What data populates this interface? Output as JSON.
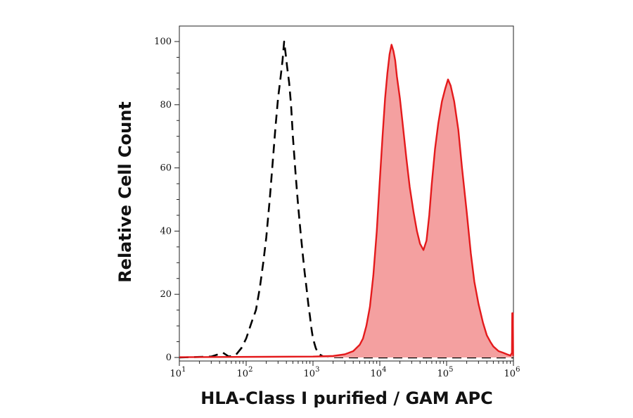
{
  "chart_data": {
    "type": "area",
    "xlabel": "HLA-Class I purified / GAM APC",
    "ylabel": "Relative Cell Count",
    "x_scale": "log",
    "xlim": [
      10,
      1000000
    ],
    "ylim": [
      0,
      100
    ],
    "yticks": [
      0,
      20,
      40,
      60,
      80,
      100
    ],
    "xticks": [
      {
        "base": "10",
        "exp": "1",
        "value": 10
      },
      {
        "base": "10",
        "exp": "2",
        "value": 100
      },
      {
        "base": "10",
        "exp": "3",
        "value": 1000
      },
      {
        "base": "10",
        "exp": "4",
        "value": 10000
      },
      {
        "base": "10",
        "exp": "5",
        "value": 100000
      },
      {
        "base": "10",
        "exp": "6",
        "value": 1000000
      }
    ],
    "grid": false,
    "series": [
      {
        "style": "dashed",
        "color": "#000000",
        "points": [
          [
            10,
            0
          ],
          [
            30,
            0.3
          ],
          [
            45,
            1.5
          ],
          [
            55,
            0.3
          ],
          [
            70,
            0.8
          ],
          [
            85,
            3
          ],
          [
            100,
            6
          ],
          [
            120,
            11
          ],
          [
            140,
            15
          ],
          [
            160,
            22
          ],
          [
            180,
            30
          ],
          [
            200,
            38
          ],
          [
            225,
            50
          ],
          [
            250,
            62
          ],
          [
            275,
            73
          ],
          [
            300,
            82
          ],
          [
            325,
            88
          ],
          [
            350,
            94
          ],
          [
            370,
            100
          ],
          [
            390,
            96
          ],
          [
            410,
            92
          ],
          [
            440,
            87
          ],
          [
            470,
            80
          ],
          [
            500,
            70
          ],
          [
            550,
            58
          ],
          [
            600,
            48
          ],
          [
            650,
            40
          ],
          [
            700,
            33
          ],
          [
            750,
            27
          ],
          [
            800,
            22
          ],
          [
            850,
            17
          ],
          [
            900,
            13
          ],
          [
            950,
            9
          ],
          [
            1000,
            6
          ],
          [
            1100,
            3
          ],
          [
            1200,
            1.2
          ],
          [
            1400,
            0.4
          ],
          [
            2000,
            0.1
          ],
          [
            5000,
            0
          ],
          [
            1000000,
            0
          ]
        ]
      },
      {
        "style": "filled",
        "color": "#e41a1c",
        "fill": "#f4a0a0",
        "points": [
          [
            10,
            0.1
          ],
          [
            1000,
            0.3
          ],
          [
            2000,
            0.5
          ],
          [
            3000,
            1
          ],
          [
            4000,
            2
          ],
          [
            5000,
            4
          ],
          [
            5600,
            6
          ],
          [
            6300,
            10
          ],
          [
            7100,
            16
          ],
          [
            8000,
            26
          ],
          [
            9000,
            40
          ],
          [
            10000,
            56
          ],
          [
            11000,
            70
          ],
          [
            12000,
            82
          ],
          [
            13000,
            90
          ],
          [
            14000,
            96
          ],
          [
            15000,
            99
          ],
          [
            16000,
            97
          ],
          [
            17000,
            94
          ],
          [
            18000,
            89
          ],
          [
            20000,
            82
          ],
          [
            22000,
            74
          ],
          [
            25000,
            63
          ],
          [
            28000,
            54
          ],
          [
            32000,
            46
          ],
          [
            36000,
            40
          ],
          [
            40000,
            36
          ],
          [
            45000,
            34
          ],
          [
            50000,
            37
          ],
          [
            55000,
            45
          ],
          [
            60000,
            55
          ],
          [
            67000,
            66
          ],
          [
            75000,
            74
          ],
          [
            85000,
            81
          ],
          [
            95000,
            85
          ],
          [
            105000,
            88
          ],
          [
            115000,
            86
          ],
          [
            130000,
            81
          ],
          [
            150000,
            72
          ],
          [
            170000,
            60
          ],
          [
            200000,
            46
          ],
          [
            230000,
            33
          ],
          [
            260000,
            24
          ],
          [
            300000,
            17
          ],
          [
            350000,
            11
          ],
          [
            400000,
            7
          ],
          [
            450000,
            5
          ],
          [
            500000,
            3.5
          ],
          [
            600000,
            2
          ],
          [
            700000,
            1.5
          ],
          [
            800000,
            1
          ],
          [
            900000,
            0.6
          ],
          [
            950000,
            1.5
          ],
          [
            960000,
            14
          ],
          [
            980000,
            14
          ],
          [
            990000,
            0.5
          ]
        ]
      }
    ]
  }
}
